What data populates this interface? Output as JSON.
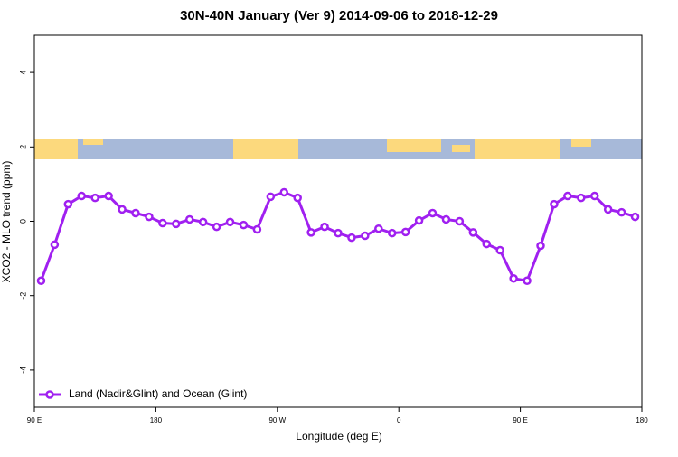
{
  "chart_data": {
    "type": "line",
    "title": "30N-40N January (Ver 9)   2014-09-06 to 2018-12-29",
    "xlabel": "Longitude (deg E)",
    "ylabel": "XCO2 - MLO trend (ppm)",
    "x": [
      95,
      105,
      115,
      125,
      135,
      145,
      155,
      165,
      175,
      185,
      195,
      205,
      215,
      225,
      235,
      245,
      255,
      265,
      275,
      285,
      295,
      305,
      315,
      325,
      335,
      345,
      355,
      365,
      375,
      385,
      395,
      405,
      415,
      425,
      435,
      445,
      455,
      465,
      475,
      485,
      495,
      505,
      515,
      525,
      535
    ],
    "series": [
      {
        "name": "Land (Nadir&Glint) and Ocean (Glint)",
        "color": "#a020f0",
        "values": [
          -1.6,
          -0.63,
          0.46,
          0.68,
          0.63,
          0.68,
          0.32,
          0.22,
          0.12,
          -0.05,
          -0.07,
          0.05,
          -0.02,
          -0.15,
          -0.02,
          -0.1,
          -0.22,
          0.66,
          0.78,
          0.63,
          -0.3,
          -0.15,
          -0.32,
          -0.44,
          -0.39,
          -0.2,
          -0.32,
          -0.29,
          0.02,
          0.22,
          0.05,
          0,
          -0.3,
          -0.61,
          -0.78,
          -1.54,
          -1.6,
          -0.66,
          0.46,
          0.68,
          0.63,
          0.68,
          0.32,
          0.24,
          0.12
        ]
      }
    ],
    "xlim": [
      90,
      540
    ],
    "ylim": [
      -5,
      5
    ],
    "xticks": [
      {
        "value": 90,
        "label": "90 E"
      },
      180,
      {
        "value": 270,
        "label": "90 W"
      },
      {
        "value": 360,
        "label": "0"
      },
      {
        "value": 450,
        "label": "90 E"
      },
      {
        "value": 540,
        "label": "180"
      }
    ],
    "yticks": [
      -4,
      -2,
      0,
      2,
      4
    ],
    "legend": "bottom-left"
  }
}
